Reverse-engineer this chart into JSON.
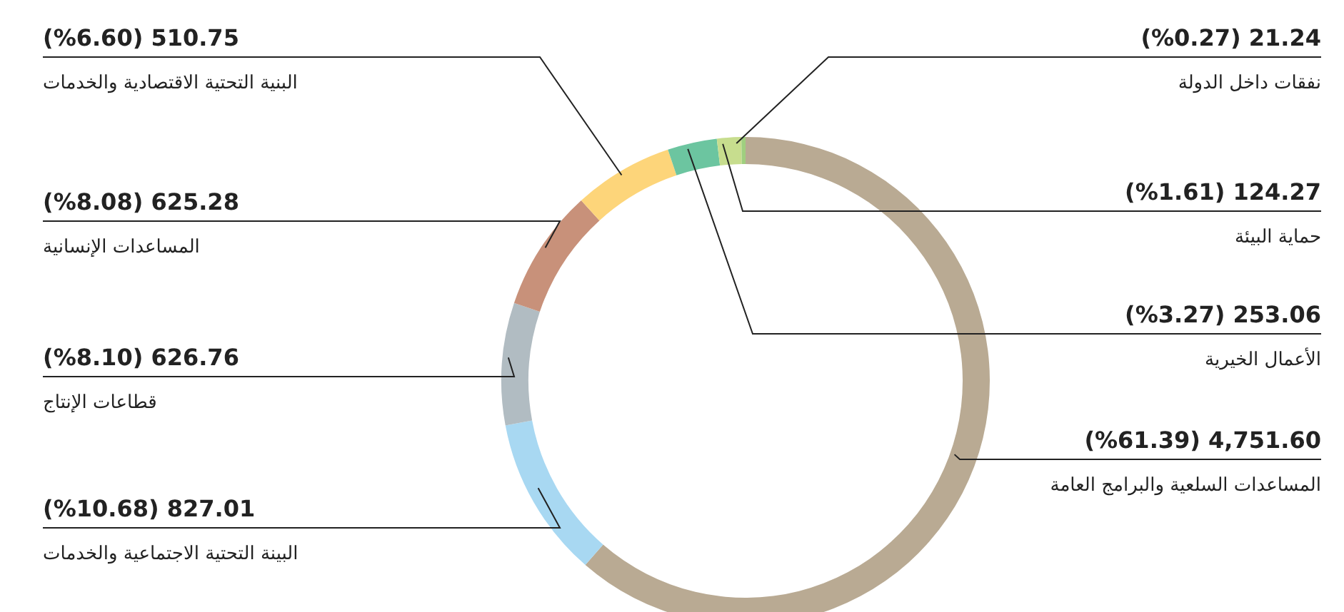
{
  "chart_data": {
    "type": "donut",
    "categories": [
      "المساعدات السلعية والبرامج العامة",
      "البينة التحتية الاجتماعية والخدمات",
      "قطاعات الإنتاج",
      "المساعدات الإنسانية",
      "البنية التحتية الاقتصادية والخدمات",
      "الأعمال الخيرية",
      "حماية البيئة",
      "نفقات داخل الدولة"
    ],
    "values": [
      4751.6,
      827.01,
      626.76,
      625.28,
      510.75,
      253.06,
      124.27,
      21.24
    ],
    "colors": [
      "#b9aa93",
      "#a8d8f2",
      "#b1bcc2",
      "#c8917a",
      "#fdd57a",
      "#6cc5a0",
      "#c7dd8e",
      "#9fcf7f"
    ],
    "value_labels": [
      "(%61.39) 4,751.60",
      "(%10.68) 827.01",
      "(%8.10) 626.76",
      "(%8.08) 625.28",
      "(%6.60) 510.75",
      "(%3.27) 253.06",
      "(%1.61) 124.27",
      "(%0.27) 21.24"
    ],
    "legend": false
  }
}
